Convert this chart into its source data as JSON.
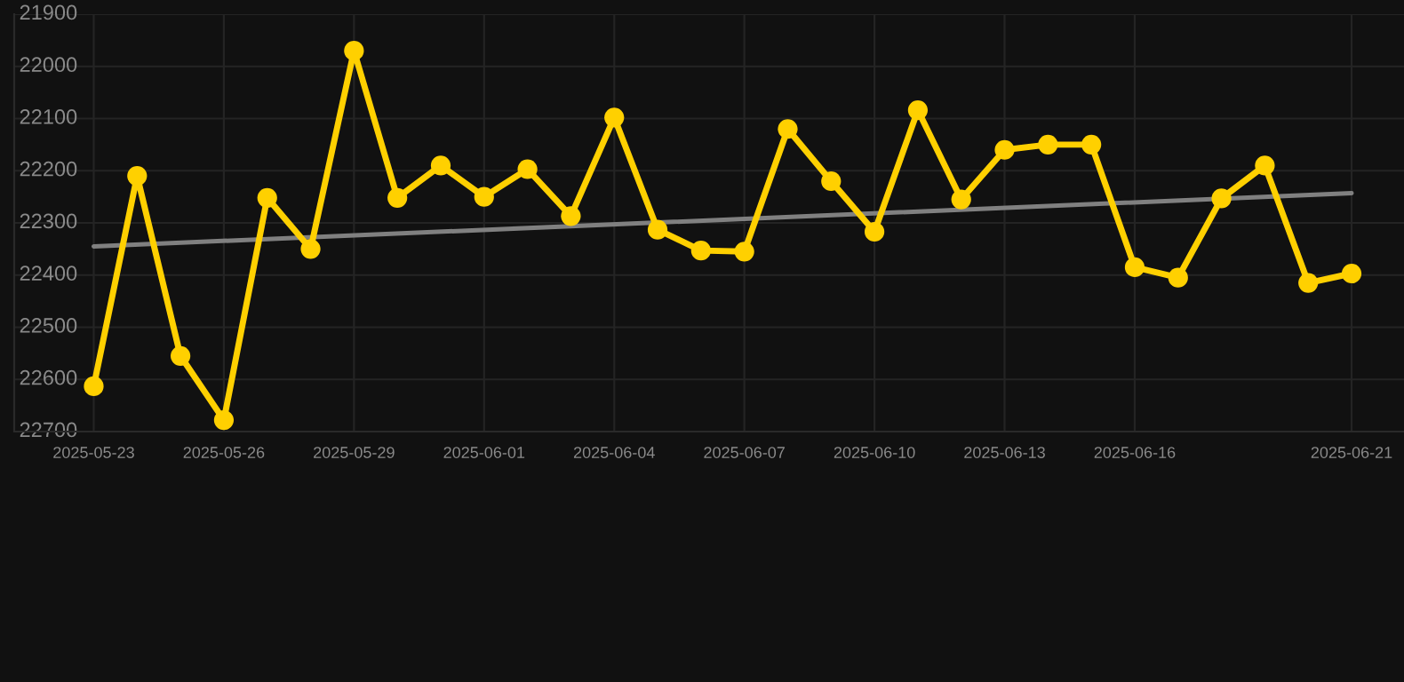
{
  "chart_data": {
    "type": "line",
    "x": [
      "2025-05-23",
      "2025-05-24",
      "2025-05-25",
      "2025-05-26",
      "2025-05-27",
      "2025-05-28",
      "2025-05-29",
      "2025-05-30",
      "2025-05-31",
      "2025-06-01",
      "2025-06-02",
      "2025-06-03",
      "2025-06-04",
      "2025-06-05",
      "2025-06-06",
      "2025-06-07",
      "2025-06-08",
      "2025-06-09",
      "2025-06-10",
      "2025-06-11",
      "2025-06-12",
      "2025-06-13",
      "2025-06-14",
      "2025-06-15",
      "2025-06-16",
      "2025-06-17",
      "2025-06-18",
      "2025-06-19",
      "2025-06-20",
      "2025-06-21"
    ],
    "series": [
      {
        "type": "line",
        "color": "#ffd000",
        "marker": "circle",
        "values": [
          22613,
          22210,
          22555,
          22678,
          22252,
          22350,
          21970,
          22252,
          22190,
          22250,
          22197,
          22287,
          22098,
          22313,
          22353,
          22355,
          22120,
          22220,
          22317,
          22084,
          22255,
          22160,
          22150,
          22150,
          22385,
          22405,
          22253,
          22190,
          22415,
          22397
        ]
      },
      {
        "type": "line",
        "color": "#808080",
        "marker": "none",
        "x": [
          "2025-05-23",
          "2025-06-21"
        ],
        "values": [
          22345,
          22243
        ]
      }
    ],
    "ylim": [
      22700,
      21900
    ],
    "yticks": [
      21900,
      22000,
      22100,
      22200,
      22300,
      22400,
      22500,
      22600,
      22700
    ],
    "xlim": [
      "2025-05-21T04:00",
      "2025-06-22T05:00"
    ],
    "xticks": [
      "2025-05-23",
      "2025-05-26",
      "2025-05-29",
      "2025-06-01",
      "2025-06-04",
      "2025-06-07",
      "2025-06-10",
      "2025-06-13",
      "2025-06-16",
      "2025-06-21"
    ],
    "grid": true,
    "line_style": "solid"
  }
}
